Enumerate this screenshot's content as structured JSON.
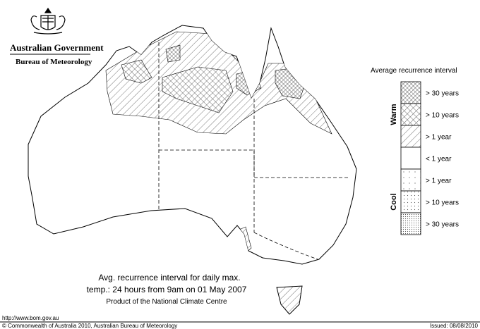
{
  "header": {
    "organisation": "Australian Government",
    "agency": "Bureau of Meteorology"
  },
  "legend": {
    "title": "Average recurrence interval",
    "groups": [
      "Warm",
      "Cool"
    ],
    "items": [
      "> 30 years",
      "> 10 years",
      "> 1 year",
      "< 1 year",
      "> 1 year",
      "> 10 years",
      "> 30 years"
    ]
  },
  "caption": [
    "Avg. recurrence interval for daily max.",
    "temp.: 24 hours from 9am on 01 May 2007",
    "Product of the National Climate Centre"
  ],
  "footer": {
    "url": "http://www.bom.gov.au",
    "copyright": "© Commonwealth of Australia 2010, Australian Bureau of Meteorology",
    "issued": "Issued: 08/08/2010"
  }
}
